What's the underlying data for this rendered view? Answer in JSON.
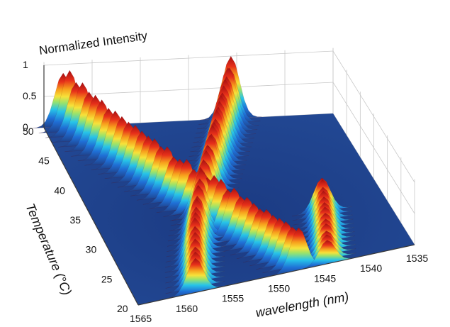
{
  "chart_data": {
    "type": "surface",
    "zlabel": "Normalized Intensity",
    "xlabel": "wavelength (nm)",
    "ylabel": "Temperature (°C)",
    "xlim": [
      1535,
      1565
    ],
    "ylim": [
      20,
      50
    ],
    "zlim": [
      0,
      1
    ],
    "x_ticks": [
      "1565",
      "1560",
      "1555",
      "1550",
      "1545",
      "1540",
      "1535"
    ],
    "y_ticks": [
      "20",
      "25",
      "30",
      "35",
      "40",
      "45",
      "50"
    ],
    "z_ticks": [
      "0",
      "0.5",
      "1"
    ],
    "colormap": "jet",
    "grid": true,
    "ridges": [
      {
        "name": "",
        "points": [
          {
            "temperature": 50,
            "wavelength": 1563.0,
            "intensity": 1.0
          },
          {
            "temperature": 45,
            "wavelength": 1560.6,
            "intensity": 0.88
          },
          {
            "temperature": 40,
            "wavelength": 1558.0,
            "intensity": 0.82
          },
          {
            "temperature": 35,
            "wavelength": 1555.6,
            "intensity": 0.8
          },
          {
            "temperature": 30,
            "wavelength": 1552.8,
            "intensity": 0.78
          },
          {
            "temperature": 25,
            "wavelength": 1550.2,
            "intensity": 0.72
          },
          {
            "temperature": 20,
            "wavelength": 1547.6,
            "intensity": 0.68
          }
        ]
      },
      {
        "name": "",
        "points": [
          {
            "temperature": 50,
            "wavelength": 1545.6,
            "intensity": 1.0
          },
          {
            "temperature": 45,
            "wavelength": 1548.0,
            "intensity": 0.9
          },
          {
            "temperature": 40,
            "wavelength": 1550.4,
            "intensity": 0.85
          },
          {
            "temperature": 35,
            "wavelength": 1552.8,
            "intensity": 0.82
          },
          {
            "temperature": 30,
            "wavelength": 1555.2,
            "intensity": 0.84
          },
          {
            "temperature": 25,
            "wavelength": 1557.2,
            "intensity": 0.72
          },
          {
            "temperature": 20,
            "wavelength": 1558.8,
            "intensity": 0.55
          }
        ]
      },
      {
        "name": "",
        "points": [
          {
            "temperature": 30,
            "wavelength": 1542.0,
            "intensity": 0.6
          },
          {
            "temperature": 25,
            "wavelength": 1543.2,
            "intensity": 0.5
          },
          {
            "temperature": 20,
            "wavelength": 1544.5,
            "intensity": 0.38
          }
        ]
      }
    ],
    "colors": {
      "floor": "#1f3f86",
      "grid": "#c8c8c8",
      "axis": "#3a3a3a"
    }
  }
}
